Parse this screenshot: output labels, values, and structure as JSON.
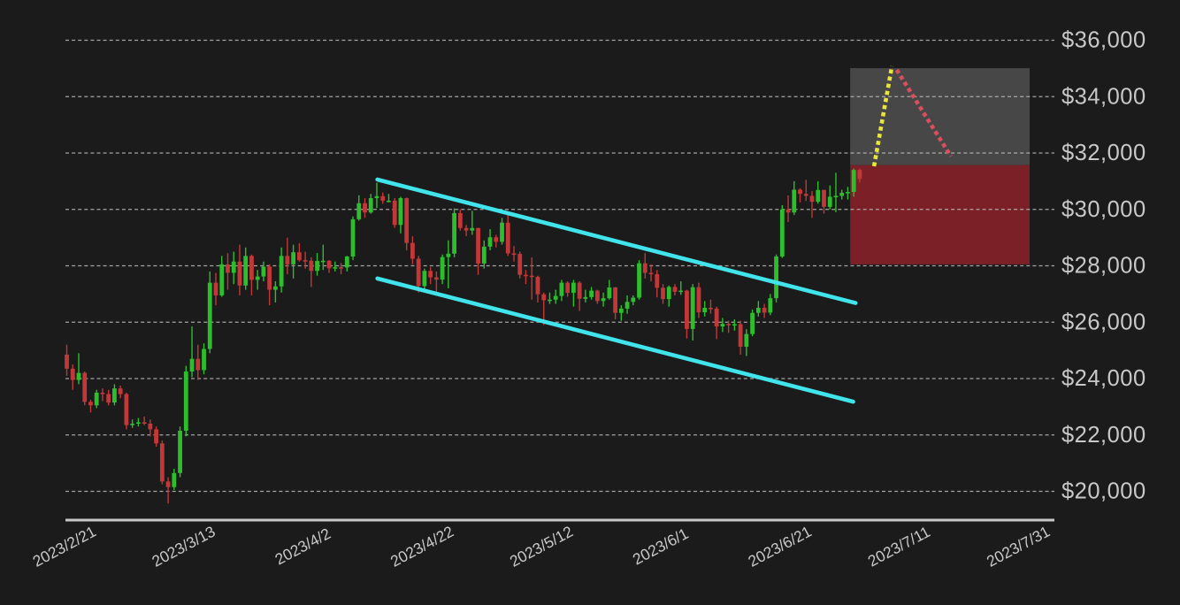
{
  "colors": {
    "background": "#1b1b1b",
    "bullish": "#2dbe2d",
    "bearish": "#c23838",
    "channel": "#40e4ea",
    "projection_up": "#e8e53c",
    "projection_down": "#d94f5c",
    "zone_gray": "#474747",
    "zone_red": "#7a2026",
    "gridline": "#bdbdbd",
    "axis_line": "#c8c8c8",
    "label_text": "#c8c8c8"
  },
  "chart_data": {
    "type": "candlestick",
    "y_axis": {
      "side": "right",
      "ticks": [
        {
          "value": 36000,
          "label": "$36,000"
        },
        {
          "value": 34000,
          "label": "$34,000"
        },
        {
          "value": 32000,
          "label": "$32,000"
        },
        {
          "value": 30000,
          "label": "$30,000"
        },
        {
          "value": 28000,
          "label": "$28,000"
        },
        {
          "value": 26000,
          "label": "$26,000"
        },
        {
          "value": 24000,
          "label": "$24,000"
        },
        {
          "value": 22000,
          "label": "$22,000"
        },
        {
          "value": 20000,
          "label": "$20,000"
        }
      ]
    },
    "x_axis": {
      "ticks": [
        {
          "day": 0,
          "label": "2023/2/21"
        },
        {
          "day": 20,
          "label": "2023/3/13"
        },
        {
          "day": 40,
          "label": "2023/4/2"
        },
        {
          "day": 60,
          "label": "2023/4/22"
        },
        {
          "day": 80,
          "label": "2023/5/12"
        },
        {
          "day": 100,
          "label": "2023/6/1"
        },
        {
          "day": 120,
          "label": "2023/6/21"
        },
        {
          "day": 140,
          "label": "2023/7/11"
        },
        {
          "day": 160,
          "label": "2023/7/31"
        }
      ]
    },
    "candle_columns": [
      "date",
      "open",
      "high",
      "low",
      "close"
    ],
    "candles": [
      [
        "2023/2/21",
        24850,
        25200,
        24100,
        24350
      ],
      [
        "2023/2/22",
        24350,
        24500,
        23600,
        23950
      ],
      [
        "2023/2/23",
        23950,
        24900,
        23800,
        24200
      ],
      [
        "2023/2/24",
        24200,
        24250,
        23050,
        23175
      ],
      [
        "2023/2/25",
        23175,
        23250,
        22800,
        23050
      ],
      [
        "2023/2/26",
        23050,
        23600,
        22950,
        23500
      ],
      [
        "2023/2/27",
        23500,
        23650,
        23200,
        23450
      ],
      [
        "2023/2/28",
        23450,
        23600,
        23050,
        23150
      ],
      [
        "2023/3/1",
        23150,
        23800,
        23050,
        23650
      ],
      [
        "2023/3/2",
        23650,
        23750,
        23300,
        23450
      ],
      [
        "2023/3/3",
        23450,
        23500,
        22200,
        22350
      ],
      [
        "2023/3/4",
        22350,
        22550,
        22250,
        22400
      ],
      [
        "2023/3/5",
        22400,
        22600,
        22300,
        22450
      ],
      [
        "2023/3/6",
        22450,
        22650,
        22350,
        22400
      ],
      [
        "2023/3/7",
        22400,
        22550,
        21950,
        22200
      ],
      [
        "2023/3/8",
        22200,
        22300,
        21580,
        21700
      ],
      [
        "2023/3/9",
        21700,
        21800,
        20250,
        20350
      ],
      [
        "2023/3/10",
        20350,
        20500,
        19570,
        20150
      ],
      [
        "2023/3/11",
        20150,
        20800,
        20050,
        20650
      ],
      [
        "2023/3/12",
        20650,
        22300,
        20500,
        22150
      ],
      [
        "2023/3/13",
        22150,
        24450,
        21950,
        24250
      ],
      [
        "2023/3/14",
        24250,
        25850,
        24050,
        24700
      ],
      [
        "2023/3/15",
        24700,
        25200,
        23950,
        24300
      ],
      [
        "2023/3/16",
        24300,
        25250,
        24150,
        25050
      ],
      [
        "2023/3/17",
        25050,
        27800,
        24900,
        27400
      ],
      [
        "2023/3/18",
        27400,
        27750,
        26600,
        26950
      ],
      [
        "2023/3/19",
        26950,
        28350,
        26900,
        28050
      ],
      [
        "2023/3/20",
        28050,
        28450,
        27150,
        27750
      ],
      [
        "2023/3/21",
        27750,
        28500,
        27350,
        28150
      ],
      [
        "2023/3/22",
        28150,
        28750,
        26950,
        27300
      ],
      [
        "2023/3/23",
        27300,
        28650,
        27150,
        28350
      ],
      [
        "2023/3/24",
        28350,
        28400,
        26950,
        27500
      ],
      [
        "2023/3/25",
        27500,
        27850,
        27150,
        27620
      ],
      [
        "2023/3/26",
        27620,
        28150,
        27450,
        27970
      ],
      [
        "2023/3/27",
        27970,
        28050,
        26600,
        27150
      ],
      [
        "2023/3/28",
        27150,
        27450,
        26700,
        27270
      ],
      [
        "2023/3/29",
        27270,
        28650,
        27050,
        28350
      ],
      [
        "2023/3/30",
        28350,
        29000,
        27700,
        28050
      ],
      [
        "2023/3/31",
        28050,
        28750,
        27550,
        28480
      ],
      [
        "2023/4/1",
        28480,
        28800,
        28150,
        28200
      ],
      [
        "2023/4/2",
        28200,
        28500,
        27900,
        28180
      ],
      [
        "2023/4/3",
        28180,
        28300,
        27250,
        27820
      ],
      [
        "2023/4/4",
        27820,
        28450,
        27650,
        28170
      ],
      [
        "2023/4/5",
        28170,
        28750,
        27850,
        28180
      ],
      [
        "2023/4/6",
        28180,
        28200,
        27750,
        27910
      ],
      [
        "2023/4/7",
        27910,
        28150,
        27800,
        27950
      ],
      [
        "2023/4/8",
        27950,
        28100,
        27700,
        27940
      ],
      [
        "2023/4/9",
        27940,
        28350,
        27800,
        28330
      ],
      [
        "2023/4/10",
        28330,
        29750,
        28200,
        29650
      ],
      [
        "2023/4/11",
        29650,
        30500,
        29600,
        30220
      ],
      [
        "2023/4/12",
        30220,
        30400,
        29700,
        29890
      ],
      [
        "2023/4/13",
        29890,
        30550,
        29850,
        30400
      ],
      [
        "2023/4/14",
        30400,
        30950,
        30050,
        30470
      ],
      [
        "2023/4/15",
        30470,
        30600,
        30200,
        30310
      ],
      [
        "2023/4/16",
        30310,
        30550,
        30250,
        30310
      ],
      [
        "2023/4/17",
        30310,
        30400,
        29350,
        29450
      ],
      [
        "2023/4/18",
        29450,
        30450,
        29150,
        30400
      ],
      [
        "2023/4/19",
        30400,
        30420,
        28550,
        28810
      ],
      [
        "2023/4/20",
        28810,
        29050,
        28050,
        28250
      ],
      [
        "2023/4/21",
        28250,
        28350,
        27050,
        27280
      ],
      [
        "2023/4/22",
        27280,
        27900,
        27150,
        27820
      ],
      [
        "2023/4/23",
        27820,
        27950,
        27350,
        27590
      ],
      [
        "2023/4/24",
        27590,
        27800,
        26950,
        27510
      ],
      [
        "2023/4/25",
        27510,
        28400,
        27350,
        28310
      ],
      [
        "2023/4/26",
        28310,
        28900,
        27200,
        28430
      ],
      [
        "2023/4/27",
        28430,
        30040,
        28300,
        29870
      ],
      [
        "2023/4/28",
        29870,
        30000,
        29250,
        29340
      ],
      [
        "2023/4/29",
        29340,
        29450,
        29050,
        29250
      ],
      [
        "2023/4/30",
        29250,
        29950,
        29100,
        29340
      ],
      [
        "2023/5/1",
        29340,
        29350,
        27680,
        28080
      ],
      [
        "2023/5/2",
        28080,
        28900,
        27900,
        28680
      ],
      [
        "2023/5/3",
        28680,
        29300,
        28550,
        29010
      ],
      [
        "2023/5/4",
        29010,
        29100,
        28650,
        28850
      ],
      [
        "2023/5/5",
        28850,
        29700,
        28750,
        29530
      ],
      [
        "2023/5/6",
        29530,
        29850,
        28350,
        28440
      ],
      [
        "2023/5/7",
        28440,
        28700,
        28150,
        28420
      ],
      [
        "2023/5/8",
        28420,
        28500,
        27550,
        27680
      ],
      [
        "2023/5/9",
        27680,
        27850,
        27350,
        27650
      ],
      [
        "2023/5/10",
        27650,
        28300,
        26800,
        27610
      ],
      [
        "2023/5/11",
        27610,
        27650,
        26700,
        26990
      ],
      [
        "2023/5/12",
        26990,
        27050,
        25900,
        26780
      ],
      [
        "2023/5/13",
        26780,
        27050,
        26650,
        26800
      ],
      [
        "2023/5/14",
        26800,
        27150,
        26650,
        26930
      ],
      [
        "2023/5/15",
        26930,
        27500,
        26750,
        27400
      ],
      [
        "2023/5/16",
        27400,
        27450,
        26900,
        27040
      ],
      [
        "2023/5/17",
        27040,
        27500,
        26550,
        27400
      ],
      [
        "2023/5/18",
        27400,
        27450,
        26400,
        26830
      ],
      [
        "2023/5/19",
        26830,
        27150,
        26700,
        26890
      ],
      [
        "2023/5/20",
        26890,
        27250,
        26800,
        27120
      ],
      [
        "2023/5/21",
        27120,
        27150,
        26650,
        26750
      ],
      [
        "2023/5/22",
        26750,
        27050,
        26550,
        26850
      ],
      [
        "2023/5/23",
        26850,
        27500,
        26800,
        27230
      ],
      [
        "2023/5/24",
        27230,
        27250,
        26100,
        26330
      ],
      [
        "2023/5/25",
        26330,
        26600,
        26050,
        26480
      ],
      [
        "2023/5/26",
        26480,
        26950,
        26300,
        26720
      ],
      [
        "2023/5/27",
        26720,
        26950,
        26600,
        26870
      ],
      [
        "2023/5/28",
        26870,
        28200,
        26800,
        28090
      ],
      [
        "2023/5/29",
        28090,
        28450,
        27550,
        27750
      ],
      [
        "2023/5/30",
        27750,
        28050,
        27450,
        27700
      ],
      [
        "2023/5/31",
        27700,
        27850,
        26880,
        27220
      ],
      [
        "2023/6/1",
        27220,
        27350,
        26650,
        26820
      ],
      [
        "2023/6/2",
        26820,
        27300,
        26550,
        27250
      ],
      [
        "2023/6/3",
        27250,
        27350,
        26950,
        27080
      ],
      [
        "2023/6/4",
        27080,
        27450,
        26970,
        27120
      ],
      [
        "2023/6/5",
        27120,
        27150,
        25420,
        25760
      ],
      [
        "2023/6/6",
        25760,
        27350,
        25350,
        27240
      ],
      [
        "2023/6/7",
        27240,
        27400,
        26150,
        26350
      ],
      [
        "2023/6/8",
        26350,
        26750,
        26200,
        26510
      ],
      [
        "2023/6/9",
        26510,
        26800,
        26300,
        26480
      ],
      [
        "2023/6/10",
        26480,
        26550,
        25400,
        25850
      ],
      [
        "2023/6/11",
        25850,
        26150,
        25650,
        25940
      ],
      [
        "2023/6/12",
        25940,
        26050,
        25620,
        25900
      ],
      [
        "2023/6/13",
        25900,
        26100,
        25700,
        25930
      ],
      [
        "2023/6/14",
        25930,
        26050,
        24850,
        25130
      ],
      [
        "2023/6/15",
        25130,
        25750,
        24800,
        25580
      ],
      [
        "2023/6/16",
        25580,
        26450,
        25500,
        26330
      ],
      [
        "2023/6/17",
        26330,
        26750,
        26200,
        26510
      ],
      [
        "2023/6/18",
        26510,
        26650,
        26150,
        26340
      ],
      [
        "2023/6/19",
        26340,
        27000,
        26250,
        26850
      ],
      [
        "2023/6/20",
        26850,
        28400,
        26700,
        28330
      ],
      [
        "2023/6/21",
        28330,
        30150,
        28280,
        30000
      ],
      [
        "2023/6/22",
        30000,
        30500,
        29550,
        29890
      ],
      [
        "2023/6/23",
        29890,
        31000,
        29800,
        30700
      ],
      [
        "2023/6/24",
        30700,
        30750,
        30250,
        30550
      ],
      [
        "2023/6/25",
        30550,
        31050,
        30300,
        30480
      ],
      [
        "2023/6/26",
        30480,
        30650,
        29700,
        30270
      ],
      [
        "2023/6/27",
        30270,
        31000,
        30200,
        30690
      ],
      [
        "2023/6/28",
        30690,
        30700,
        29850,
        30090
      ],
      [
        "2023/6/29",
        30090,
        30850,
        30000,
        30450
      ],
      [
        "2023/6/30",
        30450,
        31300,
        29900,
        30480
      ],
      [
        "2023/7/1",
        30480,
        30700,
        30350,
        30590
      ],
      [
        "2023/7/2",
        30590,
        30800,
        30350,
        30620
      ],
      [
        "2023/7/3",
        30620,
        31450,
        30450,
        31400
      ],
      [
        "2023/7/4",
        31400,
        31450,
        30950,
        31080
      ]
    ],
    "overlays": {
      "channel_lines": [
        {
          "name": "channel-upper-line",
          "from": {
            "day": 52.1,
            "price": 31060
          },
          "to": {
            "day": 132.3,
            "price": 26680
          },
          "color_key": "channel"
        },
        {
          "name": "channel-lower-line",
          "from": {
            "day": 52.1,
            "price": 27550
          },
          "to": {
            "day": 131.9,
            "price": 23180
          },
          "color_key": "channel"
        }
      ],
      "projection_lines": [
        {
          "name": "projection-up-line",
          "style": "dotted",
          "from": {
            "day": 135.4,
            "price": 31530
          },
          "to": {
            "day": 138.4,
            "price": 35080
          },
          "color_key": "projection_up"
        },
        {
          "name": "projection-down-line",
          "style": "dotted",
          "from": {
            "day": 139.2,
            "price": 34950
          },
          "to": {
            "day": 148.3,
            "price": 31880
          },
          "color_key": "projection_down"
        }
      ],
      "zones": [
        {
          "name": "upper-target-zone",
          "day_start": 131.4,
          "day_end": 161.5,
          "price_top": 35010,
          "price_bottom": 31570,
          "color_key": "zone_gray"
        },
        {
          "name": "lower-support-zone",
          "day_start": 131.4,
          "day_end": 161.5,
          "price_top": 31570,
          "price_bottom": 28050,
          "color_key": "zone_red"
        }
      ]
    }
  }
}
